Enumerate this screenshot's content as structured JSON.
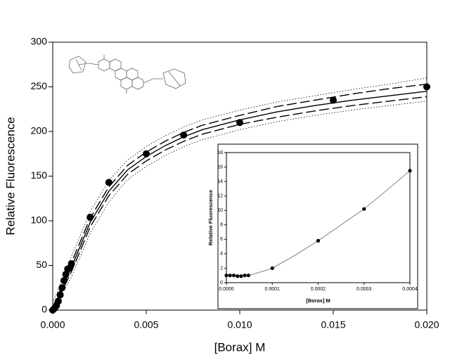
{
  "chart_data": [
    {
      "type": "scatter",
      "x_label": "[Borax] M",
      "y_label": "Relative Fluorescence",
      "xlim": [
        0,
        0.02
      ],
      "ylim": [
        0,
        300
      ],
      "xticks": [
        {
          "value": 0,
          "label": "0.000"
        },
        {
          "value": 0.005,
          "label": "0.005"
        },
        {
          "value": 0.01,
          "label": "0.010"
        },
        {
          "value": 0.015,
          "label": "0.015"
        },
        {
          "value": 0.02,
          "label": "0.020"
        }
      ],
      "yticks": [
        0,
        50,
        100,
        150,
        200,
        250,
        300
      ],
      "series": [
        {
          "style": "dotted",
          "color": "#000000",
          "x": [
            0,
            0.001,
            0.002,
            0.003,
            0.004,
            0.005,
            0.006,
            0.007,
            0.008,
            0.01,
            0.012,
            0.014,
            0.016,
            0.018,
            0.02
          ],
          "values": [
            8,
            60,
            110,
            145,
            168,
            183,
            195,
            205,
            213,
            224,
            233,
            240,
            247,
            253,
            260
          ]
        },
        {
          "style": "dashed",
          "color": "#000000",
          "x": [
            0,
            0.001,
            0.002,
            0.003,
            0.004,
            0.005,
            0.006,
            0.007,
            0.008,
            0.01,
            0.012,
            0.014,
            0.016,
            0.018,
            0.02
          ],
          "values": [
            3,
            53,
            103,
            138,
            162,
            177,
            189,
            199,
            207,
            218,
            228,
            235,
            242,
            248,
            253
          ]
        },
        {
          "style": "solid",
          "color": "#000000",
          "x": [
            0,
            0.001,
            0.002,
            0.003,
            0.004,
            0.005,
            0.006,
            0.007,
            0.008,
            0.01,
            0.012,
            0.014,
            0.016,
            0.018,
            0.02
          ],
          "values": [
            0,
            48,
            98,
            133,
            157,
            172,
            184,
            194,
            202,
            213,
            222,
            229,
            235,
            240,
            245
          ]
        },
        {
          "style": "dashed",
          "color": "#000000",
          "x": [
            0,
            0.001,
            0.002,
            0.003,
            0.004,
            0.005,
            0.006,
            0.007,
            0.008,
            0.01,
            0.012,
            0.014,
            0.016,
            0.018,
            0.02
          ],
          "values": [
            0,
            43,
            93,
            128,
            152,
            167,
            179,
            189,
            197,
            208,
            216,
            223,
            229,
            234,
            239
          ]
        },
        {
          "style": "dotted",
          "color": "#000000",
          "x": [
            0,
            0.001,
            0.002,
            0.003,
            0.004,
            0.005,
            0.006,
            0.007,
            0.008,
            0.01,
            0.012,
            0.014,
            0.016,
            0.018,
            0.02
          ],
          "values": [
            0,
            37,
            86,
            121,
            146,
            161,
            173,
            183,
            191,
            202,
            211,
            218,
            224,
            229,
            234
          ]
        },
        {
          "style": "markers",
          "color": "#000000",
          "x": [
            0,
            0.0001,
            0.0002,
            0.0003,
            0.0004,
            0.0005,
            0.0006,
            0.0007,
            0.0008,
            0.0009,
            0.001,
            0.002,
            0.003,
            0.005,
            0.007,
            0.01,
            0.015,
            0.02
          ],
          "values": [
            0,
            2,
            5,
            10,
            17,
            25,
            33,
            40,
            46,
            47,
            52,
            104,
            143,
            175,
            196,
            210,
            235,
            250
          ]
        }
      ]
    },
    {
      "type": "scatter",
      "x_label": "[Borax] M",
      "y_label": "Relative Fluorescence",
      "xlim": [
        0,
        0.0004
      ],
      "ylim": [
        0,
        18
      ],
      "xticks": [
        {
          "value": 0,
          "label": "0.0000"
        },
        {
          "value": 0.0001,
          "label": "0.0001"
        },
        {
          "value": 0.0002,
          "label": "0.0002"
        },
        {
          "value": 0.0003,
          "label": "0.0003"
        },
        {
          "value": 0.0004,
          "label": "0.0004"
        }
      ],
      "yticks": [
        0,
        2,
        4,
        6,
        8,
        10,
        12,
        14,
        16,
        18
      ],
      "series": [
        {
          "style": "solid",
          "color": "#777777",
          "x": [
            0,
            5e-05,
            0.0001,
            0.00015,
            0.0002,
            0.00025,
            0.0003,
            0.00035,
            0.0004
          ],
          "values": [
            1,
            1,
            2,
            3.8,
            5.8,
            8,
            10.2,
            12.8,
            15.5
          ]
        },
        {
          "style": "markers",
          "color": "#000000",
          "x": [
            0,
            8e-06,
            1.6e-05,
            2.4e-05,
            3.2e-05,
            4e-05,
            4.8e-05,
            0.0001,
            0.0002,
            0.0003,
            0.0004
          ],
          "values": [
            1,
            1,
            1,
            0.9,
            0.9,
            1,
            1,
            2,
            5.8,
            10.2,
            15.5
          ]
        }
      ]
    }
  ]
}
